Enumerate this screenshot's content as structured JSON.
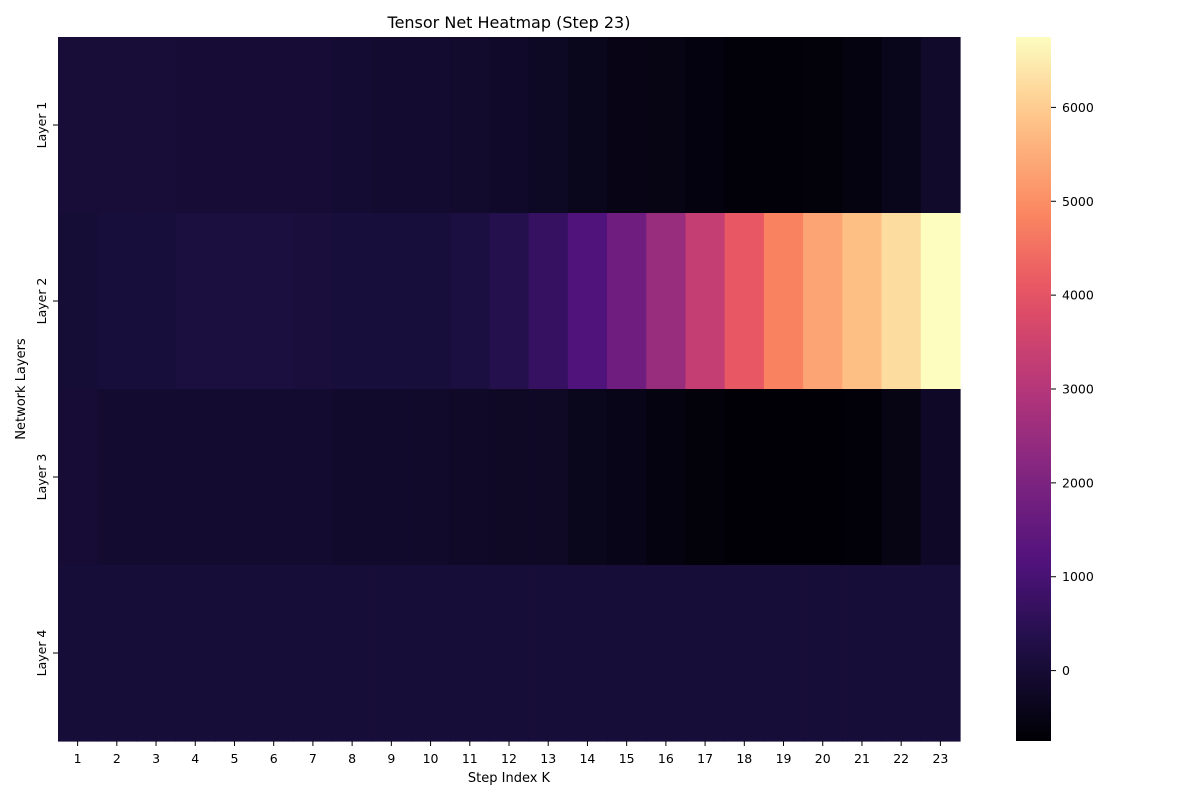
{
  "chart_data": {
    "type": "heatmap",
    "title": "Tensor Net Heatmap (Step 23)",
    "xlabel": "Step Index K",
    "ylabel": "Network Layers",
    "x_categories": [
      "1",
      "2",
      "3",
      "4",
      "5",
      "6",
      "7",
      "8",
      "9",
      "10",
      "11",
      "12",
      "13",
      "14",
      "15",
      "16",
      "17",
      "18",
      "19",
      "20",
      "21",
      "22",
      "23"
    ],
    "y_categories": [
      "Layer 1",
      "Layer 2",
      "Layer 3",
      "Layer 4"
    ],
    "values": [
      [
        40,
        40,
        40,
        0,
        0,
        0,
        0,
        -40,
        -80,
        -80,
        -110,
        -180,
        -280,
        -400,
        -480,
        -520,
        -600,
        -680,
        -680,
        -640,
        -560,
        -420,
        -170
      ],
      [
        20,
        100,
        100,
        150,
        150,
        150,
        110,
        100,
        100,
        100,
        180,
        350,
        700,
        1150,
        1750,
        2500,
        3300,
        4100,
        4800,
        5350,
        5800,
        6250,
        6750
      ],
      [
        0,
        -80,
        -80,
        -80,
        -80,
        -80,
        -80,
        -120,
        -120,
        -150,
        -200,
        -230,
        -230,
        -390,
        -450,
        -560,
        -640,
        -720,
        -720,
        -720,
        -670,
        -510,
        -220
      ],
      [
        60,
        60,
        60,
        60,
        60,
        60,
        60,
        60,
        60,
        60,
        60,
        60,
        60,
        60,
        60,
        60,
        60,
        60,
        60,
        60,
        60,
        60,
        60
      ]
    ],
    "colormap": "magma",
    "colorbar": {
      "vmin": -750,
      "vmax": 6750,
      "ticks": [
        0,
        1000,
        2000,
        3000,
        4000,
        5000,
        6000
      ],
      "tick_labels": [
        "0",
        "1000",
        "2000",
        "3000",
        "4000",
        "5000",
        "6000"
      ]
    },
    "grid": false,
    "legend": "none"
  }
}
